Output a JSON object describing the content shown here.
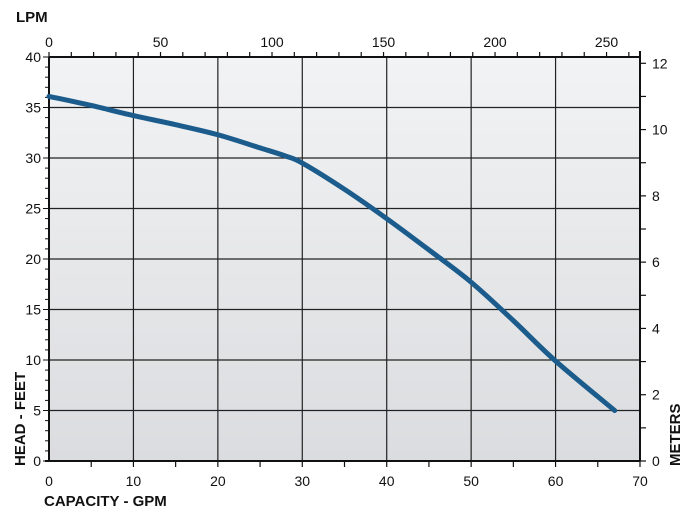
{
  "chart_data": {
    "type": "line",
    "xlabel": "CAPACITY - GPM",
    "ylabel": "HEAD - FEET",
    "x2label": "LPM",
    "y2label": "METERS",
    "xlim": [
      0,
      70
    ],
    "ylim": [
      0,
      40
    ],
    "x2lim": [
      0,
      265
    ],
    "y2lim": [
      0,
      12.19
    ],
    "x_ticks": [
      "0",
      "10",
      "20",
      "30",
      "40",
      "50",
      "60",
      "70"
    ],
    "y_ticks": [
      "0",
      "5",
      "10",
      "15",
      "20",
      "25",
      "30",
      "35",
      "40"
    ],
    "x2_ticks": [
      "0",
      "50",
      "100",
      "150",
      "200",
      "250"
    ],
    "y2_ticks": [
      "0",
      "2",
      "4",
      "6",
      "8",
      "10",
      "12"
    ],
    "grid": true,
    "line_color": "#1b5c8c",
    "series": [
      {
        "x": [
          0,
          5,
          10,
          15,
          20,
          25,
          28,
          30,
          35,
          40,
          45,
          50,
          55,
          60,
          67
        ],
        "y": [
          36.1,
          35.2,
          34.2,
          33.3,
          32.3,
          31.0,
          30.2,
          29.5,
          26.9,
          24.0,
          20.9,
          17.7,
          13.9,
          9.9,
          5.0
        ]
      }
    ]
  }
}
